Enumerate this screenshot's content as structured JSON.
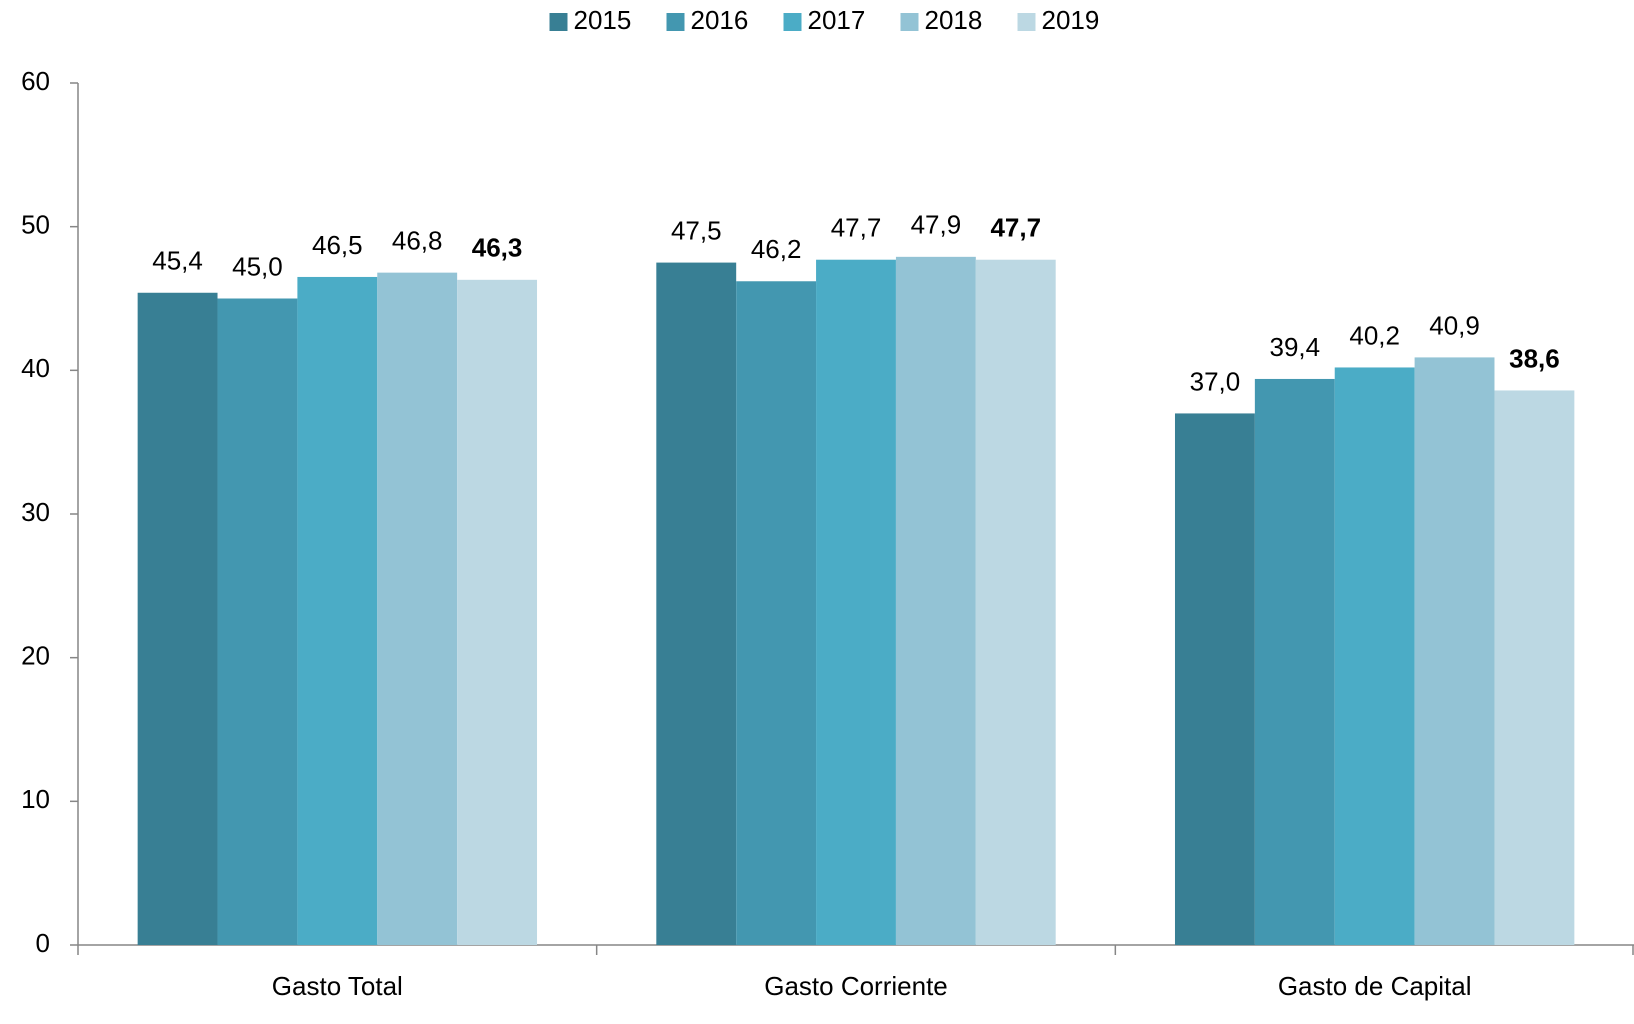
{
  "chart_data": {
    "type": "bar",
    "categories": [
      "Gasto Total",
      "Gasto Corriente",
      "Gasto de Capital"
    ],
    "series": [
      {
        "name": "2015",
        "color": "#387f94",
        "values": [
          45.4,
          47.5,
          37.0
        ],
        "value_labels": [
          "45,4",
          "47,5",
          "37,0"
        ]
      },
      {
        "name": "2016",
        "color": "#4397b0",
        "values": [
          45.0,
          46.2,
          39.4
        ],
        "value_labels": [
          "45,0",
          "46,2",
          "39,4"
        ]
      },
      {
        "name": "2017",
        "color": "#4bacc6",
        "values": [
          46.5,
          47.7,
          40.2
        ],
        "value_labels": [
          "46,5",
          "47,7",
          "40,2"
        ]
      },
      {
        "name": "2018",
        "color": "#93c3d5",
        "values": [
          46.8,
          47.9,
          40.9
        ],
        "value_labels": [
          "46,8",
          "47,9",
          "40,9"
        ]
      },
      {
        "name": "2019",
        "color": "#bcd8e3",
        "values": [
          46.3,
          47.7,
          38.6
        ],
        "value_labels": [
          "46,3",
          "47,7",
          "38,6"
        ],
        "label_bold": true
      }
    ],
    "ylim": [
      0,
      60
    ],
    "yticks": [
      0,
      10,
      20,
      30,
      40,
      50,
      60
    ],
    "legend": "top"
  }
}
